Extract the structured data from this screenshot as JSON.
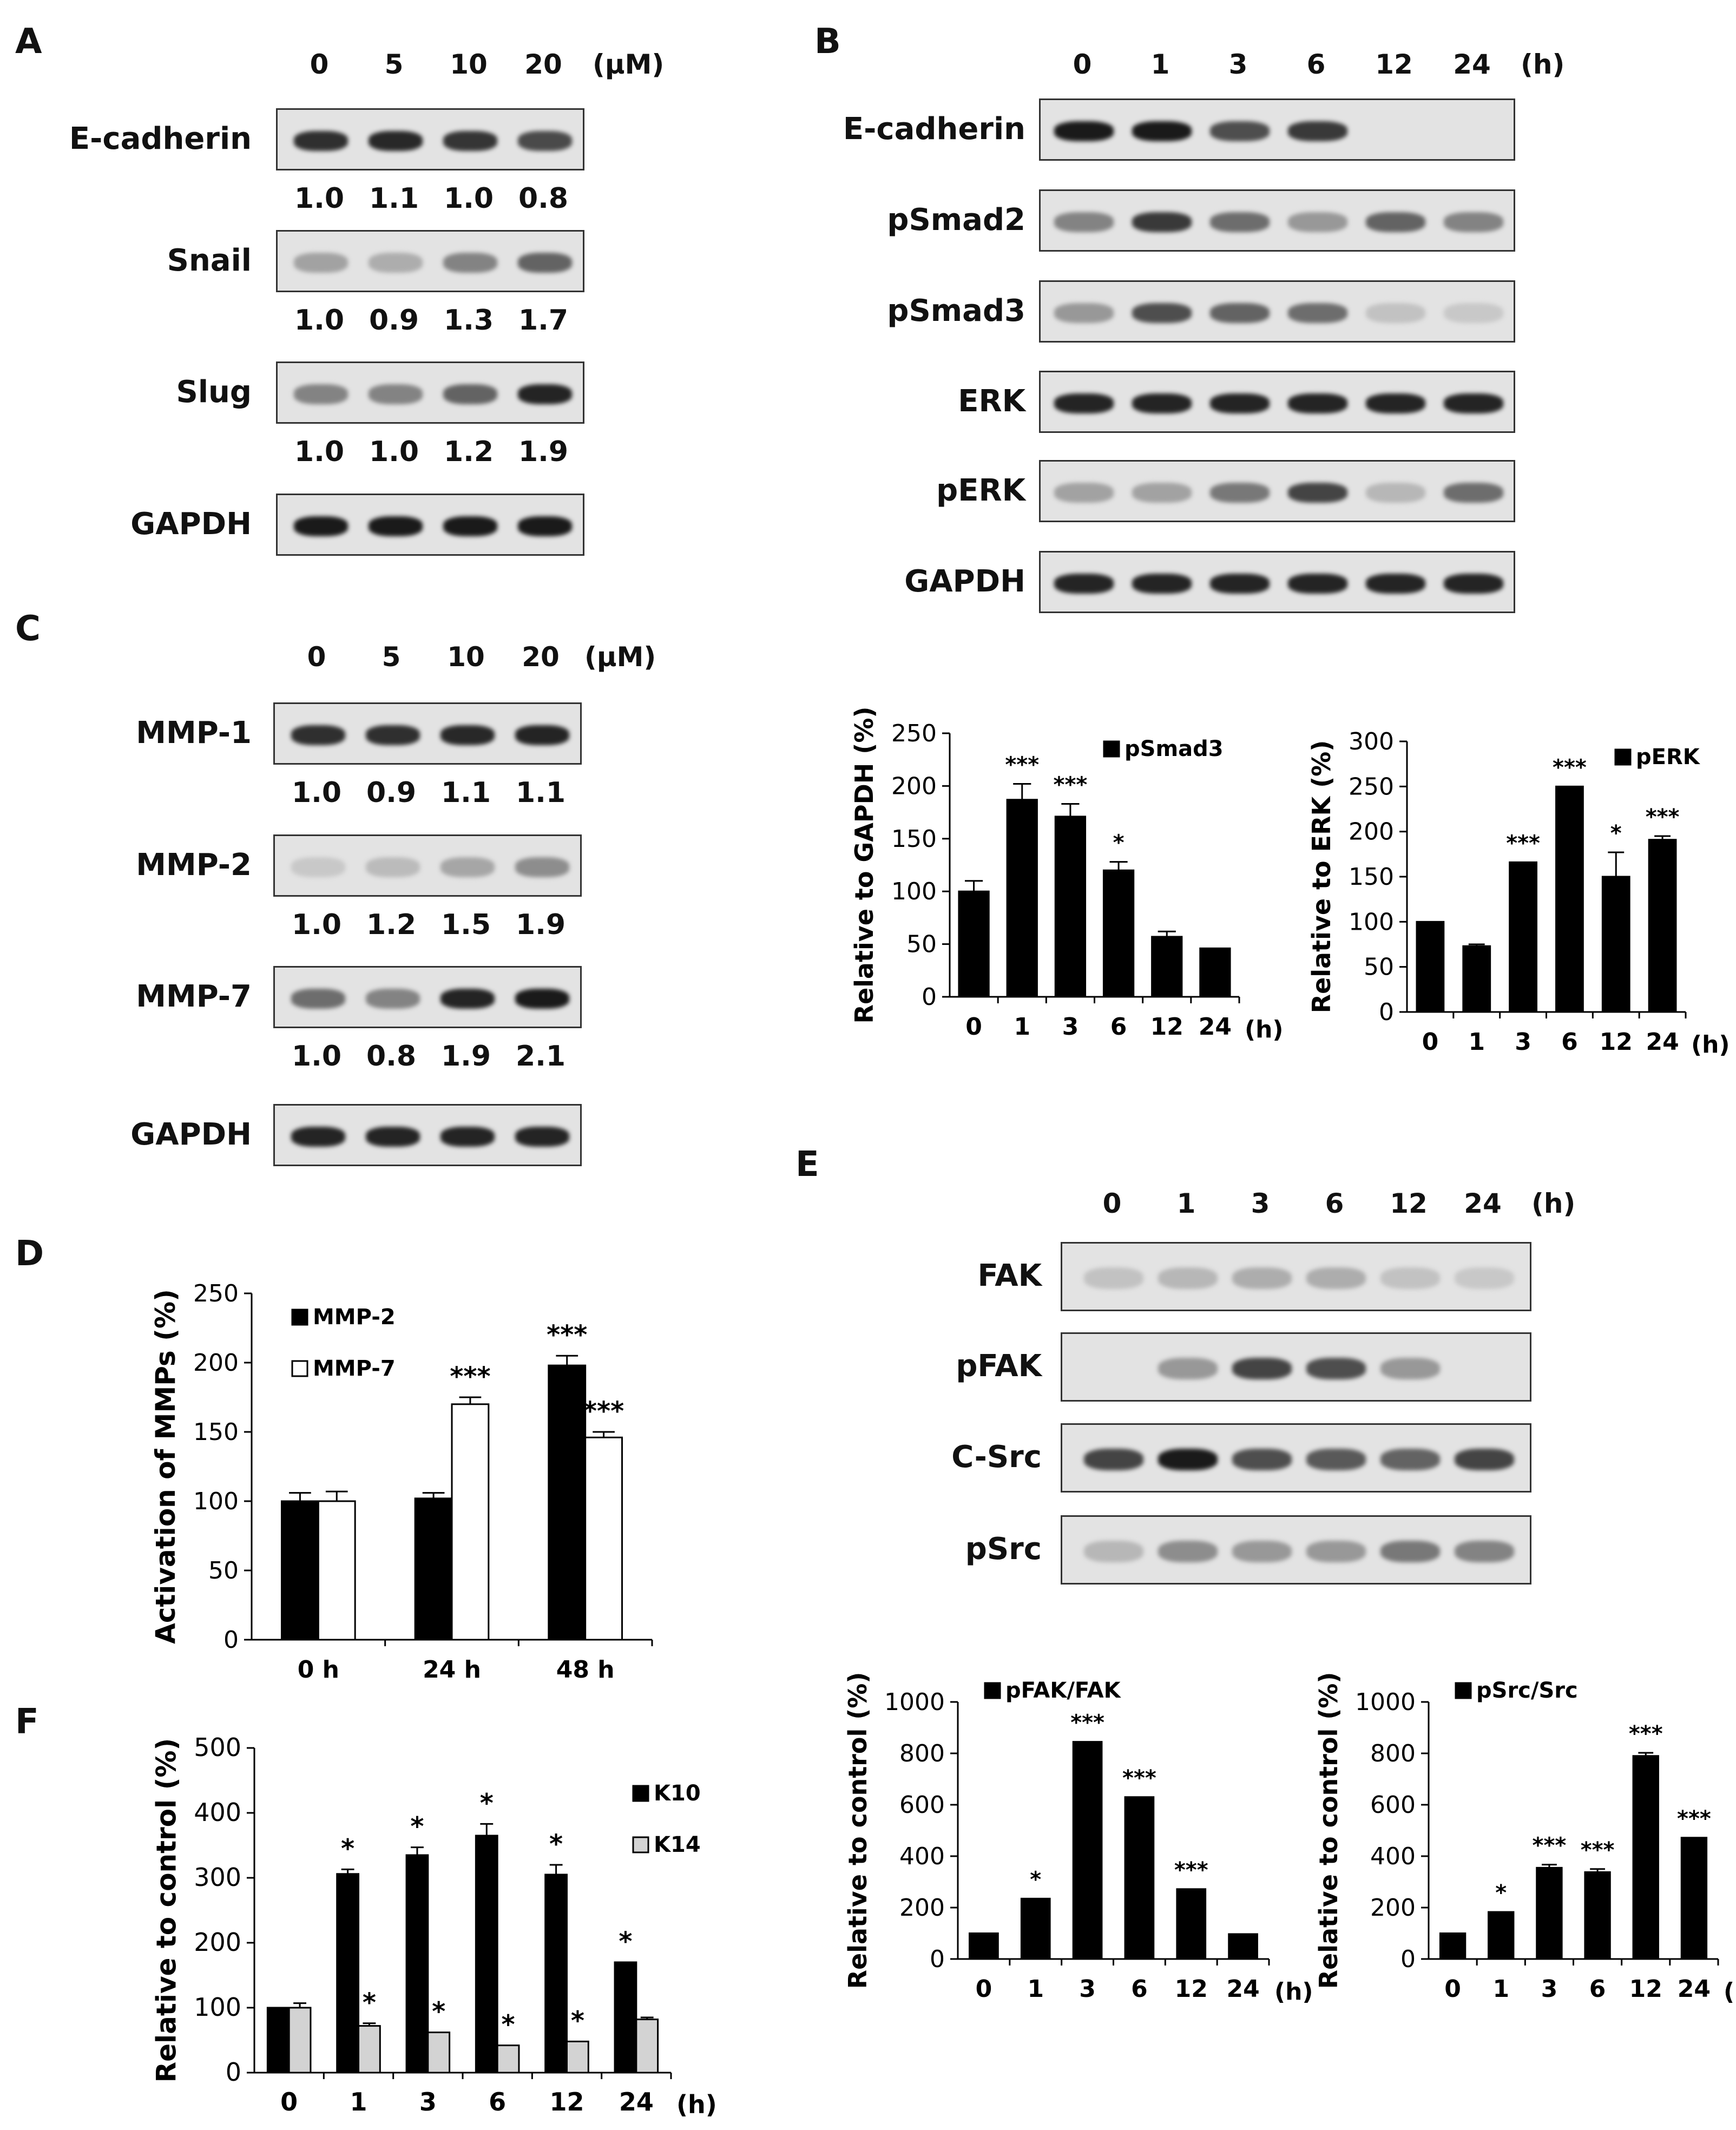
{
  "panels": {
    "A": {
      "letter": "A",
      "conc": [
        "0",
        "5",
        "10",
        "20"
      ],
      "unit": "(μM)",
      "rows": [
        {
          "label": "E-cadherin",
          "quant": [
            "1.0",
            "1.1",
            "1.0",
            "0.8"
          ],
          "band_intensity": [
            0.85,
            0.88,
            0.82,
            0.72
          ]
        },
        {
          "label": "Snail",
          "quant": [
            "1.0",
            "0.9",
            "1.3",
            "1.7"
          ],
          "band_intensity": [
            0.3,
            0.25,
            0.45,
            0.6
          ]
        },
        {
          "label": "Slug",
          "quant": [
            "1.0",
            "1.0",
            "1.2",
            "1.9"
          ],
          "band_intensity": [
            0.45,
            0.45,
            0.6,
            0.9
          ]
        },
        {
          "label": "GAPDH",
          "quant": [],
          "band_intensity": [
            0.95,
            0.95,
            0.95,
            0.95
          ]
        }
      ]
    },
    "B": {
      "letter": "B",
      "times": [
        "0",
        "1",
        "3",
        "6",
        "12",
        "24"
      ],
      "unit": "(h)",
      "rows": [
        {
          "label": "E-cadherin",
          "band_intensity": [
            0.95,
            0.95,
            0.7,
            0.8,
            0.0,
            0.0
          ]
        },
        {
          "label": "pSmad2",
          "band_intensity": [
            0.45,
            0.8,
            0.55,
            0.35,
            0.6,
            0.45
          ]
        },
        {
          "label": "pSmad3",
          "band_intensity": [
            0.35,
            0.7,
            0.6,
            0.55,
            0.15,
            0.12
          ]
        },
        {
          "label": "ERK",
          "band_intensity": [
            0.9,
            0.9,
            0.9,
            0.9,
            0.9,
            0.9
          ]
        },
        {
          "label": "pERK",
          "band_intensity": [
            0.3,
            0.3,
            0.5,
            0.75,
            0.2,
            0.55
          ]
        },
        {
          "label": "GAPDH",
          "band_intensity": [
            0.9,
            0.9,
            0.9,
            0.9,
            0.9,
            0.9
          ]
        }
      ]
    },
    "C": {
      "letter": "C",
      "conc": [
        "0",
        "5",
        "10",
        "20"
      ],
      "unit": "(μM)",
      "rows": [
        {
          "label": "MMP-1",
          "quant": [
            "1.0",
            "0.9",
            "1.1",
            "1.1"
          ],
          "band_intensity": [
            0.85,
            0.85,
            0.88,
            0.9
          ]
        },
        {
          "label": "MMP-2",
          "quant": [
            "1.0",
            "1.2",
            "1.5",
            "1.9"
          ],
          "band_intensity": [
            0.12,
            0.18,
            0.28,
            0.4
          ]
        },
        {
          "label": "MMP-7",
          "quant": [
            "1.0",
            "0.8",
            "1.9",
            "2.1"
          ],
          "band_intensity": [
            0.55,
            0.45,
            0.9,
            0.95
          ]
        },
        {
          "label": "GAPDH",
          "quant": [],
          "band_intensity": [
            0.9,
            0.9,
            0.9,
            0.9
          ]
        }
      ]
    },
    "D": {
      "letter": "D"
    },
    "E": {
      "letter": "E",
      "times": [
        "0",
        "1",
        "3",
        "6",
        "12",
        "24"
      ],
      "unit": "(h)",
      "rows": [
        {
          "label": "FAK",
          "band_intensity": [
            0.15,
            0.2,
            0.25,
            0.25,
            0.15,
            0.12
          ]
        },
        {
          "label": "pFAK",
          "band_intensity": [
            0.0,
            0.35,
            0.75,
            0.7,
            0.35,
            0.0
          ]
        },
        {
          "label": "C-Src",
          "band_intensity": [
            0.75,
            0.95,
            0.7,
            0.65,
            0.6,
            0.75
          ]
        },
        {
          "label": "pSrc",
          "band_intensity": [
            0.2,
            0.4,
            0.35,
            0.35,
            0.5,
            0.45
          ]
        }
      ]
    },
    "F": {
      "letter": "F"
    }
  },
  "chart_data": [
    {
      "id": "B-pSmad3",
      "type": "bar",
      "categories": [
        "0",
        "1",
        "3",
        "6",
        "12",
        "24"
      ],
      "x_unit": "(h)",
      "series": [
        {
          "name": "pSmad3",
          "values": [
            100,
            187,
            171,
            120,
            57,
            46
          ],
          "errors": [
            10,
            15,
            12,
            8,
            5,
            0
          ],
          "color": "#000000"
        }
      ],
      "significance": [
        "",
        "***",
        "***",
        "*",
        "",
        ""
      ],
      "ylabel": "Relative to GAPDH (%)",
      "ylim": [
        0,
        250
      ],
      "yticks": [
        0,
        50,
        100,
        150,
        200,
        250
      ],
      "legend": "top-right"
    },
    {
      "id": "B-pERK",
      "type": "bar",
      "categories": [
        "0",
        "1",
        "3",
        "6",
        "12",
        "24"
      ],
      "x_unit": "(h)",
      "series": [
        {
          "name": "pERK",
          "values": [
            100,
            73,
            166,
            250,
            150,
            191
          ],
          "errors": [
            0,
            2,
            0,
            0,
            27,
            4
          ],
          "color": "#000000"
        }
      ],
      "significance": [
        "",
        "",
        "***",
        "***",
        "*",
        "***"
      ],
      "ylabel": "Relative to ERK (%)",
      "ylim": [
        0,
        300
      ],
      "yticks": [
        0,
        50,
        100,
        150,
        200,
        250,
        300
      ],
      "legend": "top-right"
    },
    {
      "id": "D",
      "type": "bar",
      "categories": [
        "0 h",
        "24 h",
        "48 h"
      ],
      "x_unit": "",
      "series": [
        {
          "name": "MMP-2",
          "values": [
            100,
            102,
            198
          ],
          "errors": [
            6,
            4,
            7
          ],
          "color": "#000000"
        },
        {
          "name": "MMP-7",
          "values": [
            100,
            170,
            146
          ],
          "errors": [
            7,
            5,
            4
          ],
          "color": "#ffffff"
        }
      ],
      "significance": [
        [
          "",
          ""
        ],
        [
          "",
          "***"
        ],
        [
          "***",
          "***"
        ]
      ],
      "ylabel": "Activation of MMPs (%)",
      "ylim": [
        0,
        250
      ],
      "yticks": [
        0,
        50,
        100,
        150,
        200,
        250
      ],
      "legend": "top-left"
    },
    {
      "id": "E-pFAK",
      "type": "bar",
      "categories": [
        "0",
        "1",
        "3",
        "6",
        "12",
        "24"
      ],
      "x_unit": "(h)",
      "series": [
        {
          "name": "pFAK/FAK",
          "values": [
            100,
            235,
            845,
            630,
            272,
            97
          ],
          "errors": [
            0,
            0,
            0,
            0,
            0,
            0
          ],
          "color": "#000000"
        }
      ],
      "significance": [
        "",
        "*",
        "***",
        "***",
        "***",
        ""
      ],
      "ylabel": "Relative to control (%)",
      "ylim": [
        0,
        1000
      ],
      "yticks": [
        0,
        200,
        400,
        600,
        800,
        1000
      ],
      "legend": "top-left"
    },
    {
      "id": "E-pSrc",
      "type": "bar",
      "categories": [
        "0",
        "1",
        "3",
        "6",
        "12",
        "24"
      ],
      "x_unit": "(h)",
      "series": [
        {
          "name": "pSrc/Src",
          "values": [
            100,
            183,
            355,
            338,
            790,
            472
          ],
          "errors": [
            0,
            0,
            12,
            12,
            12,
            0
          ],
          "color": "#000000"
        }
      ],
      "significance": [
        "",
        "*",
        "***",
        "***",
        "***",
        "***"
      ],
      "ylabel": "Relative to control (%)",
      "ylim": [
        0,
        1000
      ],
      "yticks": [
        0,
        200,
        400,
        600,
        800,
        1000
      ],
      "legend": "top-left"
    },
    {
      "id": "F",
      "type": "bar",
      "categories": [
        "0",
        "1",
        "3",
        "6",
        "12",
        "24"
      ],
      "x_unit": "(h)",
      "series": [
        {
          "name": "K10",
          "values": [
            100,
            306,
            335,
            365,
            305,
            170
          ],
          "errors": [
            0,
            7,
            12,
            18,
            15,
            0
          ],
          "color": "#000000"
        },
        {
          "name": "K14",
          "values": [
            100,
            72,
            62,
            42,
            48,
            82
          ],
          "errors": [
            7,
            4,
            0,
            0,
            0,
            3
          ],
          "color": "#d3d3d3"
        }
      ],
      "significance": [
        [
          "",
          ""
        ],
        [
          "*",
          "*"
        ],
        [
          "*",
          "*"
        ],
        [
          "*",
          "*"
        ],
        [
          "*",
          "*"
        ],
        [
          "*",
          ""
        ]
      ],
      "ylabel": "Relative to control (%)",
      "ylim": [
        0,
        500
      ],
      "yticks": [
        0,
        100,
        200,
        300,
        400,
        500
      ],
      "legend": "top-right"
    }
  ]
}
